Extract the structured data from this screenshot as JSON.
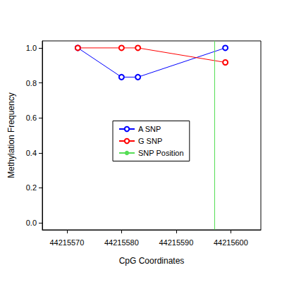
{
  "chart_data": {
    "type": "line",
    "x_label": "CpG Coordinates",
    "y_label": "Methylation Frequency",
    "xlim": [
      44215565.5,
      44215605.5
    ],
    "xticks": [
      44215570,
      44215580,
      44215590,
      44215600
    ],
    "ylim": [
      -0.04,
      1.04
    ],
    "yticks": [
      {
        "value": 0,
        "label": "0.0"
      },
      {
        "value": 0.2,
        "label": "0.2"
      },
      {
        "value": 0.4,
        "label": "0.4"
      },
      {
        "value": 0.6,
        "label": "0.6"
      },
      {
        "value": 0.8,
        "label": "0.8"
      },
      {
        "value": 1,
        "label": "1.0"
      }
    ],
    "grid": false,
    "legend": "center",
    "marker": "circle",
    "series": [
      {
        "name": "A SNP",
        "color": "#0000ff",
        "x": [
          44215572,
          44215580,
          44215583,
          44215599
        ],
        "values": [
          1.0,
          0.833,
          0.833,
          1.0
        ]
      },
      {
        "name": "G SNP",
        "color": "#ff0000",
        "x": [
          44215572,
          44215580,
          44215583,
          44215599
        ],
        "values": [
          1.0,
          1.0,
          1.0,
          0.917
        ]
      },
      {
        "name": "SNP Position",
        "color": "#55dd55",
        "type": "vline",
        "x": [
          44215597
        ]
      }
    ]
  }
}
